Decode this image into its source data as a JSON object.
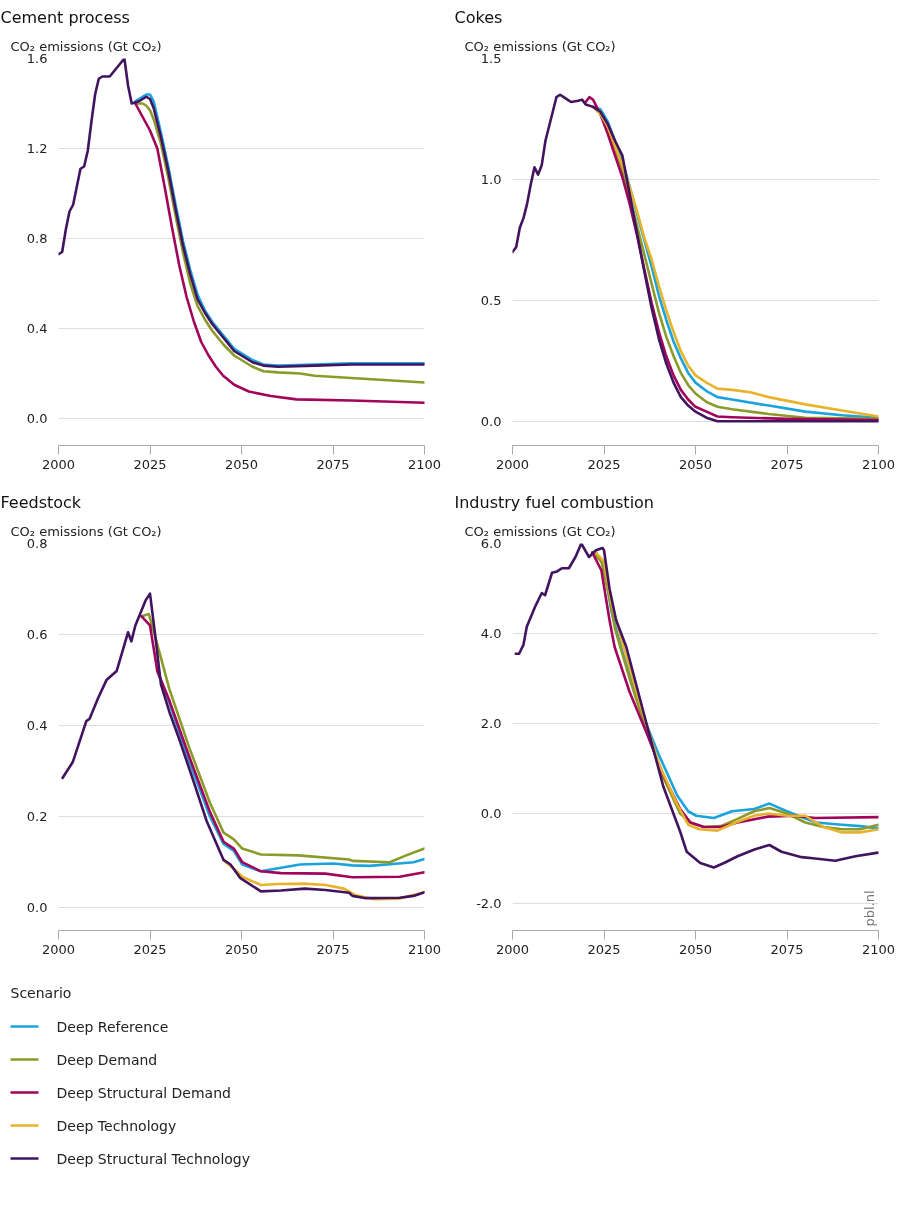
{
  "chart_data": [
    {
      "type": "line",
      "title": "Cement process",
      "ylabel": "CO₂ emissions (Gt CO₂)",
      "xlim": [
        2000,
        2100
      ],
      "xticks": [
        2000,
        2025,
        2050,
        2075,
        2100
      ],
      "ylim": [
        -0.12,
        1.6
      ],
      "yticks": [
        {
          "value": 0,
          "label": "0.0"
        },
        0.4,
        0.8,
        1.2,
        1.6
      ],
      "grid": "y",
      "line_style": "solid",
      "series": [
        {
          "color": "#1aa3dd",
          "x": [
            2021,
            2023,
            2024,
            2025,
            2026,
            2028,
            2030,
            2032,
            2034,
            2036,
            2038,
            2040,
            2042,
            2045,
            2048,
            2050,
            2053,
            2056,
            2060,
            2070,
            2080,
            2090,
            2100
          ],
          "values": [
            1.41,
            1.43,
            1.44,
            1.44,
            1.41,
            1.27,
            1.12,
            0.95,
            0.79,
            0.66,
            0.55,
            0.48,
            0.43,
            0.37,
            0.31,
            0.29,
            0.26,
            0.24,
            0.235,
            0.24,
            0.245,
            0.245,
            0.245
          ]
        },
        {
          "color": "#8c9a2a",
          "x": [
            2021,
            2023,
            2024,
            2025,
            2026,
            2028,
            2030,
            2032,
            2034,
            2036,
            2038,
            2040,
            2042,
            2045,
            2048,
            2050,
            2053,
            2056,
            2060,
            2066,
            2070,
            2080,
            2090,
            2100
          ],
          "values": [
            1.4,
            1.4,
            1.39,
            1.37,
            1.33,
            1.22,
            1.07,
            0.9,
            0.74,
            0.6,
            0.5,
            0.44,
            0.39,
            0.33,
            0.28,
            0.26,
            0.23,
            0.21,
            0.205,
            0.2,
            0.19,
            0.18,
            0.17,
            0.16
          ]
        },
        {
          "color": "#a1045a",
          "x": [
            2021,
            2023,
            2025,
            2027,
            2029,
            2031,
            2033,
            2035,
            2037,
            2039,
            2041,
            2043,
            2045,
            2048,
            2052,
            2058,
            2065,
            2080,
            2100
          ],
          "values": [
            1.4,
            1.34,
            1.28,
            1.2,
            1.03,
            0.85,
            0.68,
            0.54,
            0.43,
            0.34,
            0.28,
            0.23,
            0.19,
            0.15,
            0.12,
            0.1,
            0.085,
            0.08,
            0.07
          ]
        },
        {
          "color": "#42145f",
          "x": [
            2000,
            2001,
            2002,
            2003,
            2004,
            2005,
            2006,
            2007,
            2008,
            2009,
            2010,
            2011,
            2012,
            2014,
            2016,
            2018,
            2019,
            2020,
            2022,
            2024,
            2025,
            2026,
            2028,
            2030,
            2032,
            2034,
            2036,
            2038,
            2040,
            2042,
            2045,
            2048,
            2050,
            2053,
            2056,
            2060,
            2070,
            2080,
            2090,
            2100
          ],
          "values": [
            0.73,
            0.74,
            0.84,
            0.92,
            0.95,
            1.03,
            1.11,
            1.12,
            1.19,
            1.32,
            1.44,
            1.51,
            1.52,
            1.52,
            1.56,
            1.6,
            1.48,
            1.4,
            1.41,
            1.43,
            1.42,
            1.38,
            1.25,
            1.1,
            0.93,
            0.77,
            0.64,
            0.53,
            0.47,
            0.42,
            0.36,
            0.3,
            0.28,
            0.25,
            0.235,
            0.23,
            0.235,
            0.24,
            0.24,
            0.24
          ]
        }
      ]
    },
    {
      "type": "line",
      "title": "Cokes",
      "ylabel": "CO₂ emissions (Gt CO₂)",
      "xlim": [
        2000,
        2100
      ],
      "xticks": [
        2000,
        2025,
        2050,
        2075,
        2100
      ],
      "ylim": [
        -0.1,
        1.5
      ],
      "yticks": [
        {
          "value": 0,
          "label": "0.0"
        },
        0.5,
        {
          "value": 1,
          "label": "1.0"
        },
        1.5
      ],
      "grid": "y",
      "line_style": "solid",
      "series": [
        {
          "color": "#1aa3dd",
          "x": [
            2022,
            2024,
            2026,
            2028,
            2030,
            2032,
            2034,
            2036,
            2038,
            2040,
            2042,
            2044,
            2046,
            2048,
            2050,
            2053,
            2056,
            2060,
            2070,
            2080,
            2090,
            2100
          ],
          "values": [
            1.3,
            1.29,
            1.24,
            1.16,
            1.08,
            0.97,
            0.86,
            0.75,
            0.64,
            0.52,
            0.42,
            0.33,
            0.26,
            0.2,
            0.16,
            0.125,
            0.1,
            0.09,
            0.065,
            0.04,
            0.025,
            0.015
          ]
        },
        {
          "color": "#8c9a2a",
          "x": [
            2022,
            2024,
            2026,
            2028,
            2030,
            2032,
            2034,
            2036,
            2038,
            2040,
            2042,
            2044,
            2046,
            2048,
            2050,
            2053,
            2056,
            2060,
            2070,
            2080,
            2100
          ],
          "values": [
            1.3,
            1.28,
            1.22,
            1.13,
            1.04,
            0.93,
            0.81,
            0.69,
            0.57,
            0.45,
            0.35,
            0.27,
            0.2,
            0.15,
            0.115,
            0.08,
            0.06,
            0.05,
            0.03,
            0.015,
            0.01
          ]
        },
        {
          "color": "#a1045a",
          "x": [
            2020,
            2021,
            2022,
            2024,
            2026,
            2028,
            2030,
            2032,
            2034,
            2036,
            2038,
            2040,
            2042,
            2044,
            2046,
            2048,
            2050,
            2053,
            2056,
            2060,
            2075,
            2100
          ],
          "values": [
            1.32,
            1.34,
            1.33,
            1.27,
            1.19,
            1.1,
            1.01,
            0.9,
            0.77,
            0.63,
            0.49,
            0.37,
            0.27,
            0.19,
            0.13,
            0.09,
            0.06,
            0.04,
            0.02,
            0.017,
            0.01,
            0.005
          ]
        },
        {
          "color": "#e8b32a",
          "x": [
            2022,
            2024,
            2026,
            2028,
            2030,
            2032,
            2034,
            2036,
            2038,
            2040,
            2042,
            2044,
            2046,
            2048,
            2050,
            2053,
            2056,
            2060,
            2065,
            2070,
            2080,
            2090,
            2100
          ],
          "values": [
            1.3,
            1.27,
            1.22,
            1.14,
            1.06,
            0.97,
            0.87,
            0.76,
            0.67,
            0.56,
            0.46,
            0.37,
            0.29,
            0.23,
            0.19,
            0.16,
            0.135,
            0.13,
            0.12,
            0.1,
            0.07,
            0.045,
            0.02
          ]
        },
        {
          "color": "#42145f",
          "x": [
            2000,
            2001,
            2002,
            2003,
            2004,
            2005,
            2006,
            2007,
            2008,
            2009,
            2010,
            2011,
            2012,
            2013,
            2014,
            2015,
            2016,
            2018,
            2019,
            2020,
            2022,
            2024,
            2026,
            2028,
            2030,
            2032,
            2034,
            2036,
            2038,
            2040,
            2042,
            2044,
            2046,
            2048,
            2050,
            2053,
            2056,
            2060,
            2100
          ],
          "values": [
            0.7,
            0.72,
            0.8,
            0.84,
            0.9,
            0.98,
            1.05,
            1.02,
            1.06,
            1.16,
            1.22,
            1.28,
            1.34,
            1.35,
            1.34,
            1.33,
            1.32,
            1.325,
            1.33,
            1.31,
            1.3,
            1.28,
            1.23,
            1.16,
            1.1,
            0.94,
            0.78,
            0.62,
            0.47,
            0.34,
            0.24,
            0.16,
            0.1,
            0.065,
            0.04,
            0.015,
            0.0,
            0.0,
            0.0
          ]
        }
      ]
    },
    {
      "type": "line",
      "title": "Feedstock",
      "ylabel": "CO₂ emissions (Gt CO₂)",
      "legend_title": "Scenario",
      "legend": "bottom",
      "xlim": [
        2000,
        2100
      ],
      "xticks": [
        2000,
        2025,
        2050,
        2075,
        2100
      ],
      "ylim": [
        -0.05,
        0.8
      ],
      "yticks": [
        {
          "value": 0,
          "label": "0.0"
        },
        0.2,
        0.4,
        0.6,
        0.8
      ],
      "grid": "y",
      "line_style": "solid",
      "series": [
        {
          "name": "Deep Reference",
          "color": "#1aa3dd",
          "x": [
            2027,
            2030.3,
            2035.8,
            2041.4,
            2045.1,
            2047.9,
            2050.2,
            2055.3,
            2060.8,
            2066,
            2075,
            2080.3,
            2085,
            2093,
            2097,
            2100
          ],
          "values": [
            0.52,
            0.45,
            0.32,
            0.2,
            0.14,
            0.125,
            0.095,
            0.08,
            0.088,
            0.095,
            0.097,
            0.093,
            0.092,
            0.097,
            0.1,
            0.107
          ]
        },
        {
          "name": "Deep Demand",
          "color": "#8c9a2a",
          "x": [
            2022.7,
            2024.7,
            2026.6,
            2030.3,
            2035.8,
            2041.4,
            2045.1,
            2047.9,
            2050.2,
            2055.3,
            2065.5,
            2079.4,
            2080.3,
            2090.5,
            2095,
            2100
          ],
          "values": [
            0.64,
            0.645,
            0.59,
            0.48,
            0.35,
            0.23,
            0.165,
            0.15,
            0.13,
            0.117,
            0.115,
            0.106,
            0.103,
            0.1,
            0.115,
            0.13
          ]
        },
        {
          "name": "Deep Structural Demand",
          "color": "#a1045a",
          "x": [
            2022.7,
            2025,
            2027,
            2030.3,
            2035.8,
            2041.4,
            2045.1,
            2047.9,
            2050.2,
            2055.3,
            2060.8,
            2072.9,
            2080.3,
            2093.2,
            2100
          ],
          "values": [
            0.64,
            0.62,
            0.52,
            0.455,
            0.33,
            0.21,
            0.145,
            0.13,
            0.1,
            0.08,
            0.076,
            0.075,
            0.067,
            0.068,
            0.078
          ]
        },
        {
          "name": "Deep Technology",
          "color": "#e8b32a",
          "x": [
            2045,
            2048,
            2050.2,
            2055.3,
            2060,
            2067,
            2073,
            2078,
            2081,
            2086,
            2093,
            2100
          ],
          "values": [
            0.105,
            0.085,
            0.068,
            0.05,
            0.052,
            0.053,
            0.05,
            0.042,
            0.028,
            0.019,
            0.02,
            0.034
          ]
        },
        {
          "name": "Deep Structural Technology",
          "color": "#42145f",
          "x": [
            2001.1,
            2003.9,
            2007.6,
            2008.5,
            2010.8,
            2013.1,
            2015.9,
            2019,
            2019.9,
            2021,
            2023.8,
            2025,
            2026.4,
            2028,
            2030.3,
            2033,
            2036.8,
            2040.5,
            2045.1,
            2047,
            2049.7,
            2055.3,
            2060.8,
            2067.3,
            2072.9,
            2079.4,
            2080.3,
            2084,
            2093.2,
            2097,
            2100
          ],
          "values": [
            0.285,
            0.32,
            0.41,
            0.415,
            0.46,
            0.5,
            0.52,
            0.605,
            0.585,
            0.62,
            0.675,
            0.69,
            0.6,
            0.49,
            0.43,
            0.37,
            0.28,
            0.19,
            0.105,
            0.095,
            0.065,
            0.036,
            0.038,
            0.042,
            0.039,
            0.033,
            0.026,
            0.021,
            0.022,
            0.026,
            0.034
          ]
        }
      ]
    },
    {
      "type": "line",
      "title": "Industry fuel combustion",
      "ylabel": "CO₂ emissions (Gt CO₂)",
      "annotations": [
        "pbl.nl"
      ],
      "xlim": [
        2000,
        2100
      ],
      "xticks": [
        2000,
        2025,
        2050,
        2075,
        2100
      ],
      "ylim": [
        -2.6,
        6.0
      ],
      "yticks": [
        {
          "value": -2,
          "label": "-2.0"
        },
        {
          "value": 0,
          "label": "0.0"
        },
        {
          "value": 2,
          "label": "2.0"
        },
        {
          "value": 4,
          "label": "4.0"
        },
        {
          "value": 6,
          "label": "6.0"
        }
      ],
      "grid": "y",
      "line_style": "solid",
      "series": [
        {
          "color": "#1aa3dd",
          "x": [
            2022.8,
            2025,
            2027,
            2030,
            2035,
            2040,
            2045,
            2048,
            2050.2,
            2055,
            2060,
            2066,
            2070.2,
            2073,
            2078,
            2083,
            2090,
            2095,
            2100
          ],
          "values": [
            5.8,
            5.5,
            4.5,
            3.6,
            2.3,
            1.3,
            0.4,
            0.05,
            -0.05,
            -0.1,
            0.05,
            0.1,
            0.22,
            0.12,
            -0.05,
            -0.2,
            -0.25,
            -0.28,
            -0.33
          ]
        },
        {
          "color": "#8c9a2a",
          "x": [
            2021.8,
            2024.3,
            2026.5,
            2028,
            2032,
            2036.6,
            2041.2,
            2045.8,
            2048.6,
            2052.3,
            2056.9,
            2061.5,
            2066,
            2070.2,
            2075,
            2080,
            2085,
            2090,
            2095,
            2100
          ],
          "values": [
            5.8,
            5.6,
            4.8,
            4.1,
            3.0,
            1.85,
            0.8,
            0.0,
            -0.2,
            -0.3,
            -0.28,
            -0.12,
            0.05,
            0.12,
            0.0,
            -0.2,
            -0.3,
            -0.35,
            -0.35,
            -0.25
          ]
        },
        {
          "color": "#a1045a",
          "x": [
            2021.8,
            2024.3,
            2026.5,
            2027.9,
            2032,
            2036.6,
            2041.2,
            2045.8,
            2048.6,
            2052.3,
            2056.9,
            2061.5,
            2069.8,
            2077.1,
            2082.7,
            2100
          ],
          "values": [
            5.8,
            5.4,
            4.3,
            3.7,
            2.7,
            1.8,
            0.85,
            0.1,
            -0.2,
            -0.3,
            -0.3,
            -0.2,
            -0.07,
            -0.05,
            -0.1,
            -0.08
          ]
        },
        {
          "color": "#e8b32a",
          "x": [
            2022.8,
            2025,
            2027,
            2030,
            2035,
            2040,
            2045,
            2048,
            2051,
            2056,
            2061,
            2066,
            2070,
            2075,
            2080,
            2085,
            2090,
            2095,
            2100
          ],
          "values": [
            5.8,
            5.6,
            4.7,
            3.8,
            2.4,
            1.1,
            0.2,
            -0.25,
            -0.35,
            -0.38,
            -0.2,
            -0.05,
            0.0,
            -0.05,
            -0.05,
            -0.3,
            -0.42,
            -0.42,
            -0.35
          ]
        },
        {
          "color": "#42145f",
          "x": [
            2000.9,
            2001.8,
            2003,
            2003.9,
            2006.2,
            2008,
            2008.9,
            2010.8,
            2012.2,
            2013.5,
            2015.4,
            2017.2,
            2018.8,
            2020.9,
            2022.8,
            2024.6,
            2025,
            2026.5,
            2028.3,
            2031.1,
            2036.6,
            2041.2,
            2045.8,
            2047.6,
            2051.3,
            2055,
            2057.8,
            2061.5,
            2066.1,
            2070.2,
            2073.5,
            2079,
            2082.7,
            2088.2,
            2093.7,
            2099.9
          ],
          "values": [
            3.55,
            3.55,
            3.75,
            4.15,
            4.6,
            4.9,
            4.85,
            5.35,
            5.38,
            5.45,
            5.45,
            5.7,
            6.0,
            5.7,
            5.85,
            5.9,
            5.85,
            5.0,
            4.3,
            3.7,
            2.0,
            0.6,
            -0.4,
            -0.85,
            -1.1,
            -1.2,
            -1.1,
            -0.95,
            -0.8,
            -0.7,
            -0.85,
            -0.97,
            -1.0,
            -1.05,
            -0.95,
            -0.87
          ]
        }
      ]
    }
  ]
}
